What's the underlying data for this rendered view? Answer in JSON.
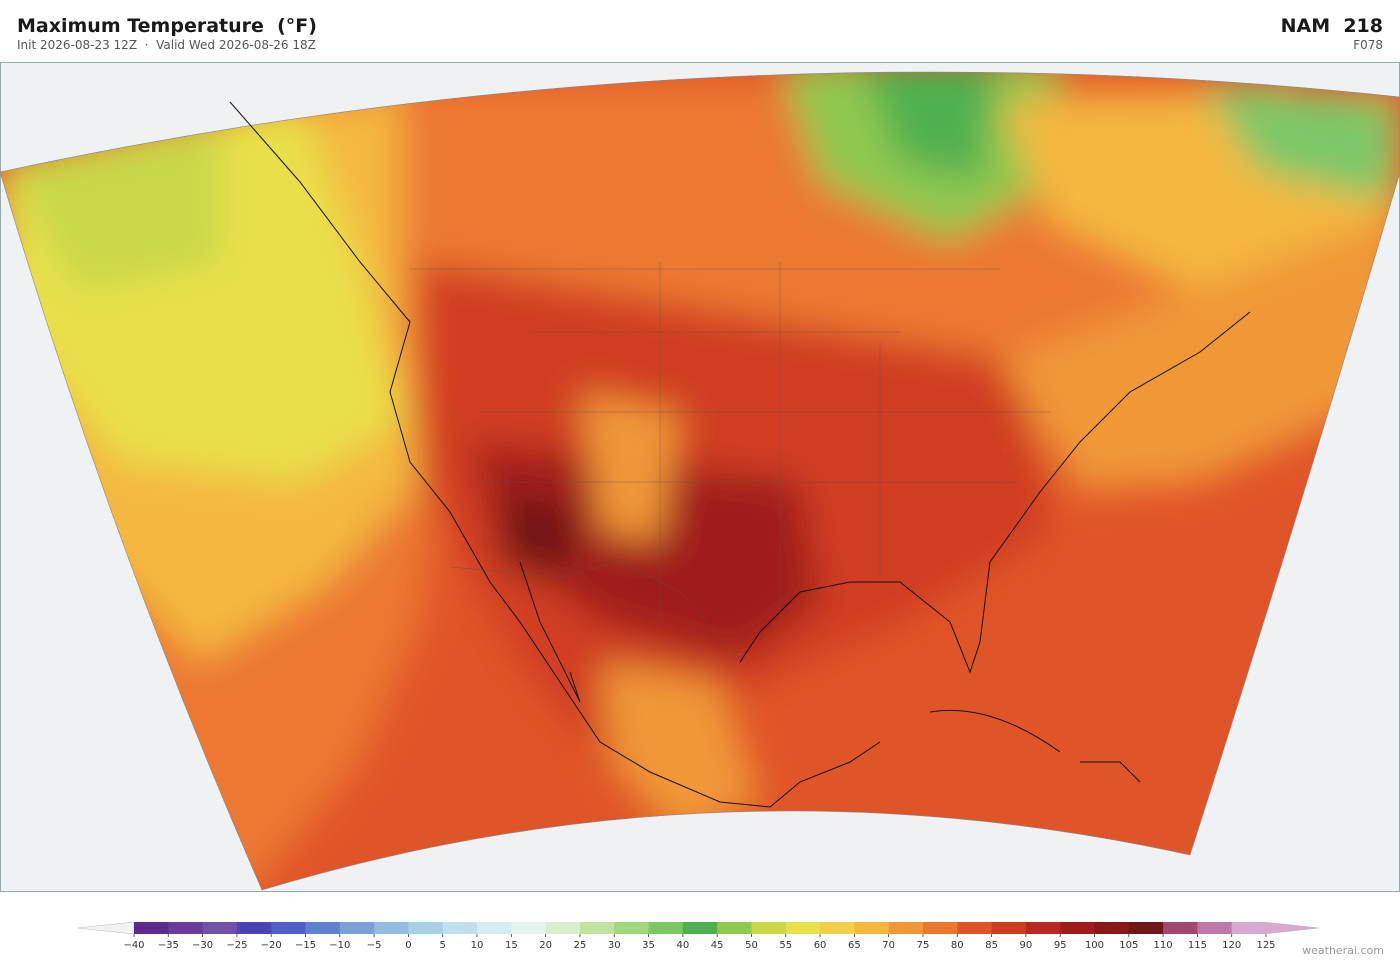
{
  "header": {
    "title": "Maximum Temperature  (°F)",
    "subtitle": "Init 2026-08-23 12Z  ·  Valid Wed 2026-08-26 18Z",
    "model": "NAM  218",
    "forecast_hour": "F078"
  },
  "colorbar": {
    "under_color": "#f2f2f2",
    "over_color": "#d8a8d0",
    "colors": [
      "#5b2a8c",
      "#6b3a9b",
      "#7050a8",
      "#4a45b0",
      "#4f60c8",
      "#5f80d0",
      "#7aa0d8",
      "#90bde0",
      "#a8d0e8",
      "#c0e0ee",
      "#d5ecf2",
      "#e5f3ef",
      "#d8eecf",
      "#c0e4a0",
      "#a0d880",
      "#7cc868",
      "#50b050",
      "#90c850",
      "#c8d848",
      "#e8e048",
      "#f4d048",
      "#f4b840",
      "#f09838",
      "#ec7830",
      "#e05528",
      "#d03c20",
      "#b82820",
      "#a01c1c",
      "#881818",
      "#701818",
      "#a04870",
      "#c078a8",
      "#d8a8d0"
    ],
    "ticks": [
      {
        "value": -40,
        "label": "−40"
      },
      {
        "value": -35,
        "label": "−35"
      },
      {
        "value": -30,
        "label": "−30"
      },
      {
        "value": -25,
        "label": "−25"
      },
      {
        "value": -20,
        "label": "−20"
      },
      {
        "value": -15,
        "label": "−15"
      },
      {
        "value": -10,
        "label": "−10"
      },
      {
        "value": -5,
        "label": "−5"
      },
      0,
      5,
      10,
      15,
      20,
      25,
      30,
      35,
      40,
      45,
      50,
      55,
      60,
      65,
      70,
      75,
      80,
      85,
      90,
      95,
      100,
      105,
      110,
      115,
      120,
      125
    ]
  },
  "footer": {
    "credit": "weatherai.com"
  }
}
